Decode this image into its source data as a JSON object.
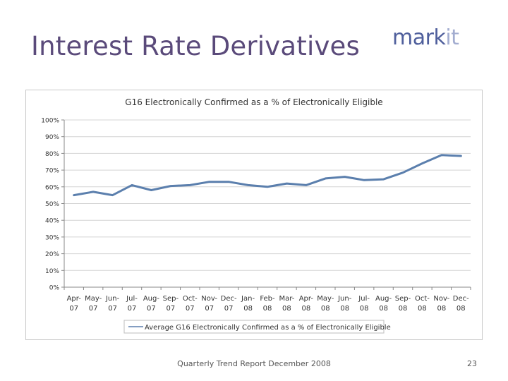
{
  "slide": {
    "title": "Interest Rate Derivatives",
    "logo_primary": "mark",
    "logo_secondary": "it",
    "footer": "Quarterly Trend Report December 2008",
    "page_number": "23"
  },
  "chart_data": {
    "type": "line",
    "title": "G16 Electronically Confirmed as a % of Electronically Eligible",
    "xlabel": "",
    "ylabel": "",
    "ylim": [
      0,
      100
    ],
    "yticks": [
      "0%",
      "10%",
      "20%",
      "30%",
      "40%",
      "50%",
      "60%",
      "70%",
      "80%",
      "90%",
      "100%"
    ],
    "categories": [
      [
        "Apr-",
        "07"
      ],
      [
        "May-",
        "07"
      ],
      [
        "Jun-",
        "07"
      ],
      [
        "Jul-",
        "07"
      ],
      [
        "Aug-",
        "07"
      ],
      [
        "Sep-",
        "07"
      ],
      [
        "Oct-",
        "07"
      ],
      [
        "Nov-",
        "07"
      ],
      [
        "Dec-",
        "07"
      ],
      [
        "Jan-",
        "08"
      ],
      [
        "Feb-",
        "08"
      ],
      [
        "Mar-",
        "08"
      ],
      [
        "Apr-",
        "08"
      ],
      [
        "May-",
        "08"
      ],
      [
        "Jun-",
        "08"
      ],
      [
        "Jul-",
        "08"
      ],
      [
        "Aug-",
        "08"
      ],
      [
        "Sep-",
        "08"
      ],
      [
        "Oct-",
        "08"
      ],
      [
        "Nov-",
        "08"
      ],
      [
        "Dec-",
        "08"
      ]
    ],
    "series": [
      {
        "name": "Average G16 Electronically Confirmed as a % of Electronically Eligible",
        "color": "#5b7fad",
        "values": [
          55,
          57,
          55,
          61,
          58,
          60.5,
          61,
          63,
          63,
          61,
          60,
          62,
          61,
          65,
          66,
          64,
          64.5,
          68.5,
          74,
          79,
          78.5
        ]
      }
    ],
    "grid": true,
    "legend": "bottom"
  }
}
